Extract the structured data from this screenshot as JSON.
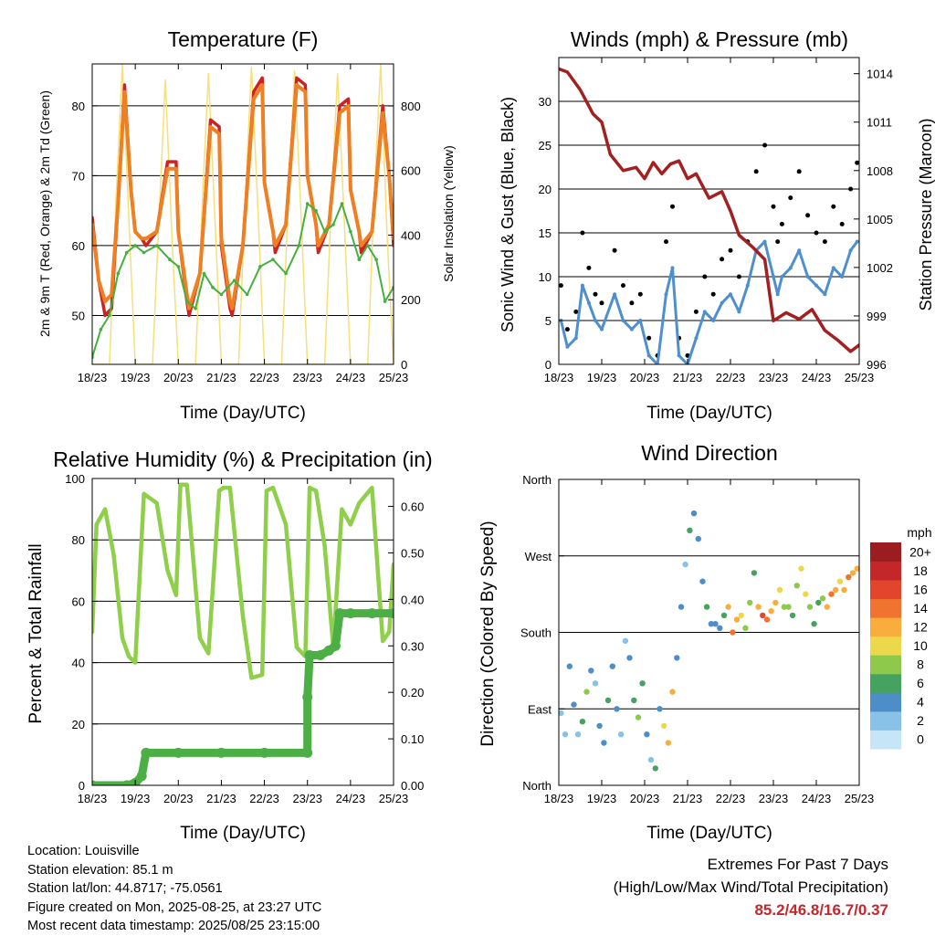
{
  "footer": {
    "location": "Location: Louisville",
    "elevation": "Station elevation: 85.1 m",
    "latlon": "Station lat/lon: 44.8717; -75.0561",
    "created": "Figure created on Mon, 2025-08-25, at 23:27 UTC",
    "latest": "Most recent data timestamp: 2025/08/25 23:15:00"
  },
  "extremes": {
    "title": "Extremes For Past 7 Days",
    "subtitle": "(High/Low/Max Wind/Total Precipitation)",
    "values": "85.2/46.8/16.7/0.37",
    "color": "#c0282d"
  },
  "chart_data": [
    {
      "type": "line",
      "title": "Temperature (F)",
      "xlabel": "Time (Day/UTC)",
      "ylabel": "2m & 9m T (Red, Orange) & 2m Td (Green)",
      "y2label": "Solar Insolation (Yellow)",
      "x_ticks": [
        "18/23",
        "19/23",
        "20/23",
        "21/23",
        "22/23",
        "23/23",
        "24/23",
        "25/23"
      ],
      "xlim": [
        0,
        7
      ],
      "ylim": [
        43,
        86
      ],
      "yticks": [
        50,
        60,
        70,
        80
      ],
      "y2lim": [
        0,
        930
      ],
      "y2ticks": [
        0,
        200,
        400,
        600,
        800
      ],
      "grid": true,
      "series": [
        {
          "name": "2m T",
          "axis": "left",
          "color": "#cc2222",
          "x": [
            0,
            0.15,
            0.3,
            0.45,
            0.6,
            0.75,
            0.9,
            1.0,
            1.15,
            1.25,
            1.5,
            1.75,
            1.95,
            2.0,
            2.2,
            2.25,
            2.5,
            2.75,
            2.95,
            3.0,
            3.2,
            3.25,
            3.5,
            3.75,
            3.95,
            4.0,
            4.2,
            4.25,
            4.5,
            4.75,
            4.95,
            5.0,
            5.2,
            5.25,
            5.5,
            5.75,
            5.95,
            6.0,
            6.2,
            6.25,
            6.5,
            6.75,
            6.9,
            7.0
          ],
          "y": [
            64,
            55,
            50,
            51,
            66,
            83,
            68,
            62,
            61,
            60,
            62,
            72,
            72,
            62,
            52,
            50,
            56,
            78,
            77,
            60,
            51,
            50,
            60,
            82,
            84,
            69,
            62,
            59,
            63,
            84,
            83,
            70,
            63,
            59,
            63,
            80,
            81,
            68,
            62,
            59,
            62,
            80,
            70,
            60
          ]
        },
        {
          "name": "9m T",
          "axis": "left",
          "color": "#f07f22",
          "x": [
            0,
            0.15,
            0.3,
            0.45,
            0.6,
            0.75,
            0.9,
            1.0,
            1.15,
            1.25,
            1.5,
            1.75,
            1.95,
            2.0,
            2.2,
            2.25,
            2.5,
            2.75,
            2.95,
            3.0,
            3.2,
            3.25,
            3.5,
            3.75,
            3.95,
            4.0,
            4.2,
            4.25,
            4.5,
            4.75,
            4.95,
            5.0,
            5.2,
            5.25,
            5.5,
            5.75,
            5.95,
            6.0,
            6.2,
            6.25,
            6.5,
            6.75,
            6.9,
            7.0
          ],
          "y": [
            63,
            55,
            52,
            53,
            66,
            82,
            68,
            62,
            61,
            61,
            62,
            71,
            71,
            62,
            53,
            51,
            56,
            77,
            76,
            61,
            52,
            51,
            60,
            81,
            83,
            69,
            62,
            60,
            63,
            83,
            82,
            70,
            63,
            60,
            63,
            79,
            80,
            68,
            62,
            60,
            62,
            79,
            70,
            61
          ]
        },
        {
          "name": "2m Td",
          "axis": "left",
          "color": "#44b03d",
          "x": [
            0,
            0.2,
            0.4,
            0.6,
            0.8,
            1.0,
            1.2,
            1.5,
            1.8,
            2.0,
            2.2,
            2.4,
            2.6,
            2.8,
            3.0,
            3.3,
            3.6,
            3.9,
            4.2,
            4.5,
            4.8,
            5.0,
            5.2,
            5.4,
            5.6,
            5.8,
            6.0,
            6.2,
            6.4,
            6.6,
            6.8,
            7.0
          ],
          "y": [
            44,
            48,
            50,
            56,
            59,
            60,
            59,
            60,
            58,
            57,
            52,
            51,
            56,
            54,
            53,
            55,
            53,
            57,
            58,
            56,
            60,
            66,
            65,
            62,
            63,
            66,
            62,
            58,
            60,
            58,
            52,
            54
          ]
        },
        {
          "name": "Solar Insolation",
          "axis": "right",
          "color": "#f5e07a",
          "x": [
            0,
            0.4,
            0.55,
            0.7,
            0.85,
            1.0,
            1.4,
            1.55,
            1.7,
            1.85,
            2.0,
            2.4,
            2.55,
            2.7,
            2.85,
            3.0,
            3.4,
            3.55,
            3.7,
            3.85,
            4.0,
            4.4,
            4.55,
            4.7,
            4.85,
            5.0,
            5.4,
            5.55,
            5.7,
            5.85,
            6.0,
            6.4,
            6.55,
            6.7,
            6.85,
            7.0
          ],
          "y": [
            0,
            0,
            500,
            930,
            450,
            0,
            0,
            450,
            880,
            400,
            0,
            0,
            480,
            900,
            450,
            0,
            0,
            500,
            920,
            480,
            0,
            0,
            490,
            910,
            470,
            0,
            0,
            480,
            900,
            460,
            0,
            0,
            520,
            930,
            400,
            0
          ]
        }
      ]
    },
    {
      "type": "scatter",
      "title": "Winds (mph) & Pressure (mb)",
      "xlabel": "Time (Day/UTC)",
      "ylabel": "Sonic Wind & Gust (Blue, Black)",
      "y2label": "Station Pressure (Maroon)",
      "x_ticks": [
        "18/23",
        "19/23",
        "20/23",
        "21/23",
        "22/23",
        "23/23",
        "24/23",
        "25/23"
      ],
      "xlim": [
        0,
        7
      ],
      "ylim": [
        0,
        35
      ],
      "yticks": [
        0,
        5,
        10,
        15,
        20,
        25,
        30
      ],
      "y2lim": [
        996,
        1015
      ],
      "y2ticks": [
        996,
        999,
        1002,
        1005,
        1008,
        1011,
        1014
      ],
      "grid": true,
      "series": [
        {
          "name": "Gust",
          "marker": "dot",
          "color": "#000000",
          "x": [
            0.05,
            0.2,
            0.4,
            0.55,
            0.7,
            0.85,
            1.0,
            1.3,
            1.5,
            1.7,
            1.9,
            2.1,
            2.3,
            2.5,
            2.65,
            2.8,
            3.0,
            3.2,
            3.4,
            3.6,
            3.8,
            4.0,
            4.2,
            4.4,
            4.6,
            4.8,
            5.0,
            5.1,
            5.2,
            5.4,
            5.6,
            5.8,
            6.0,
            6.2,
            6.4,
            6.6,
            6.8,
            6.95
          ],
          "y": [
            9,
            4,
            6,
            15,
            11,
            8,
            7,
            13,
            9,
            7,
            8,
            3,
            1,
            14,
            18,
            3,
            1,
            6,
            10,
            8,
            12,
            13,
            10,
            14,
            22,
            25,
            18,
            14,
            16,
            19,
            22,
            17,
            15,
            14,
            18,
            16,
            20,
            23
          ]
        },
        {
          "name": "Sonic Wind",
          "marker": "dot",
          "color": "#4e8fcf",
          "x": [
            0.05,
            0.2,
            0.4,
            0.55,
            0.7,
            0.85,
            1.0,
            1.3,
            1.5,
            1.7,
            1.9,
            2.1,
            2.3,
            2.5,
            2.65,
            2.8,
            3.0,
            3.2,
            3.4,
            3.6,
            3.8,
            4.0,
            4.2,
            4.4,
            4.6,
            4.8,
            5.0,
            5.1,
            5.2,
            5.4,
            5.6,
            5.8,
            6.0,
            6.2,
            6.4,
            6.6,
            6.8,
            6.95
          ],
          "y": [
            5,
            2,
            3,
            9,
            7,
            5,
            4,
            8,
            5,
            4,
            5,
            1,
            0,
            8,
            11,
            1,
            0,
            3,
            6,
            5,
            7,
            8,
            6,
            9,
            13,
            14,
            10,
            8,
            10,
            11,
            13,
            10,
            9,
            8,
            11,
            10,
            13,
            14
          ]
        },
        {
          "name": "Station Pressure",
          "marker": "line",
          "color": "#a31f20",
          "x": [
            0,
            0.2,
            0.5,
            0.8,
            1.0,
            1.2,
            1.5,
            1.8,
            2.0,
            2.2,
            2.4,
            2.6,
            2.8,
            3.0,
            3.2,
            3.5,
            3.8,
            4.0,
            4.2,
            4.5,
            4.8,
            5.0,
            5.3,
            5.6,
            5.9,
            6.2,
            6.5,
            6.8,
            7.0
          ],
          "y": [
            1014.3,
            1014.1,
            1013,
            1011.5,
            1011,
            1009,
            1008,
            1008.2,
            1007.5,
            1008.5,
            1007.8,
            1008.4,
            1008.6,
            1007.5,
            1007.8,
            1006.3,
            1006.7,
            1005.5,
            1004,
            1003.3,
            1002.5,
            998.7,
            999.2,
            998.8,
            999.4,
            998.1,
            997.5,
            996.8,
            997.2
          ]
        }
      ]
    },
    {
      "type": "line",
      "title": "Relative Humidity (%) & Precipitation (in)",
      "xlabel": "Time (Day/UTC)",
      "ylabel": "Percent & Total Rainfall",
      "x_ticks": [
        "18/23",
        "19/23",
        "20/23",
        "21/23",
        "22/23",
        "23/23",
        "24/23",
        "25/23"
      ],
      "xlim": [
        0,
        7
      ],
      "ylim": [
        0,
        100
      ],
      "yticks": [
        0,
        20,
        40,
        60,
        80,
        100
      ],
      "y2lim": [
        0,
        0.66
      ],
      "y2ticks": [
        "0.00",
        "0.10",
        "0.20",
        "0.30",
        "0.40",
        "0.50",
        "0.60"
      ],
      "grid": true,
      "series": [
        {
          "name": "Relative Humidity",
          "axis": "left",
          "color": "#8fcf4b",
          "x": [
            0,
            0.1,
            0.3,
            0.5,
            0.7,
            0.85,
            1.0,
            1.2,
            1.5,
            1.75,
            1.95,
            2.05,
            2.2,
            2.5,
            2.7,
            2.95,
            3.05,
            3.2,
            3.5,
            3.7,
            3.95,
            4.05,
            4.2,
            4.5,
            4.75,
            4.95,
            5.05,
            5.2,
            5.4,
            5.6,
            5.8,
            6.0,
            6.2,
            6.5,
            6.75,
            6.9,
            7.0
          ],
          "y": [
            50,
            85,
            90,
            75,
            48,
            42,
            40,
            95,
            92,
            70,
            62,
            98,
            98,
            48,
            43,
            96,
            97,
            97,
            55,
            35,
            36,
            96,
            97,
            85,
            45,
            42,
            97,
            96,
            78,
            45,
            90,
            85,
            92,
            97,
            47,
            50,
            72
          ]
        },
        {
          "name": "Total Precipitation",
          "axis": "right",
          "color": "#4caf45",
          "x": [
            0,
            0.8,
            1.0,
            1.15,
            1.25,
            2.0,
            3.0,
            4.0,
            5.0,
            5.0,
            5.05,
            5.3,
            5.5,
            5.65,
            5.75,
            6.0,
            6.5,
            7.0
          ],
          "y": [
            0,
            0,
            0.005,
            0.02,
            0.07,
            0.07,
            0.07,
            0.07,
            0.07,
            0.19,
            0.28,
            0.28,
            0.29,
            0.3,
            0.37,
            0.37,
            0.37,
            0.37
          ]
        }
      ]
    },
    {
      "type": "scatter",
      "title": "Wind Direction",
      "xlabel": "Time (Day/UTC)",
      "ylabel": "Direction (Colored By Speed)",
      "x_ticks": [
        "18/23",
        "19/23",
        "20/23",
        "21/23",
        "22/23",
        "23/23",
        "24/23",
        "25/23"
      ],
      "xlim": [
        0,
        7
      ],
      "ylim": [
        0,
        360
      ],
      "y_tick_values": [
        0,
        90,
        180,
        270,
        360
      ],
      "y_tick_labels": [
        "North",
        "East",
        "South",
        "West",
        "North"
      ],
      "grid": true,
      "colorbar": {
        "title": "mph",
        "labels": [
          "0",
          "2",
          "4",
          "6",
          "8",
          "10",
          "12",
          "14",
          "16",
          "18",
          "20+"
        ],
        "colors": [
          "#c6e6f7",
          "#89c2e8",
          "#4d8ec9",
          "#46a35f",
          "#8fc94b",
          "#ecd84a",
          "#f8ad3c",
          "#f17330",
          "#e3442c",
          "#c52729",
          "#9b1d20"
        ]
      },
      "series": [
        {
          "name": "direction",
          "x": [
            0.05,
            0.15,
            0.25,
            0.35,
            0.45,
            0.55,
            0.65,
            0.75,
            0.85,
            0.95,
            1.05,
            1.15,
            1.25,
            1.35,
            1.45,
            1.55,
            1.65,
            1.75,
            1.85,
            1.95,
            2.05,
            2.15,
            2.25,
            2.35,
            2.45,
            2.55,
            2.65,
            2.75,
            2.85,
            2.95,
            3.05,
            3.15,
            3.25,
            3.35,
            3.45,
            3.55,
            3.65,
            3.75,
            3.85,
            3.95,
            4.05,
            4.15,
            4.25,
            4.35,
            4.45,
            4.55,
            4.65,
            4.75,
            4.85,
            4.95,
            5.05,
            5.15,
            5.25,
            5.35,
            5.45,
            5.55,
            5.65,
            5.75,
            5.85,
            5.95,
            6.05,
            6.15,
            6.25,
            6.35,
            6.45,
            6.55,
            6.65,
            6.75,
            6.85,
            6.95
          ],
          "y": [
            85,
            60,
            140,
            95,
            60,
            75,
            110,
            135,
            120,
            70,
            50,
            100,
            140,
            90,
            60,
            170,
            150,
            100,
            80,
            120,
            60,
            30,
            20,
            90,
            70,
            50,
            110,
            150,
            210,
            260,
            300,
            320,
            290,
            240,
            210,
            190,
            190,
            185,
            200,
            210,
            180,
            195,
            200,
            185,
            215,
            250,
            210,
            200,
            195,
            205,
            215,
            230,
            210,
            210,
            200,
            235,
            255,
            225,
            210,
            190,
            215,
            220,
            210,
            225,
            230,
            240,
            230,
            245,
            250,
            255
          ],
          "speed": [
            2,
            1,
            3,
            4,
            2,
            5,
            7,
            3,
            2,
            4,
            3,
            6,
            4,
            3,
            2,
            2,
            4,
            6,
            8,
            5,
            3,
            2,
            5,
            4,
            10,
            11,
            12,
            4,
            3,
            2,
            5,
            4,
            3,
            4,
            5,
            4,
            3,
            4,
            6,
            12,
            14,
            11,
            10,
            8,
            7,
            6,
            12,
            15,
            13,
            12,
            11,
            9,
            8,
            7,
            6,
            8,
            10,
            9,
            7,
            5,
            6,
            8,
            12,
            13,
            11,
            10,
            12,
            13,
            12,
            11
          ]
        }
      ]
    }
  ]
}
